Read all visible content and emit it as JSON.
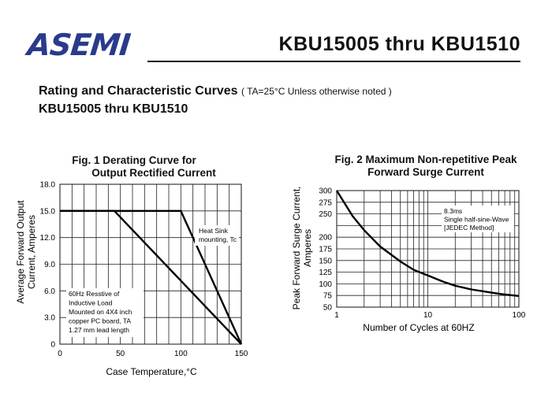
{
  "header": {
    "logo_text": "ASEMI",
    "title": "KBU15005 thru KBU1510",
    "brand_color": "#2a3a8c"
  },
  "section": {
    "title": "Rating and  Characteristic Curves",
    "condition": "( TA=25°C Unless otherwise noted )",
    "subtitle": "KBU15005 thru  KBU1510"
  },
  "chart_data": [
    {
      "type": "line",
      "title_line1": "Fig. 1 Derating Curve for",
      "title_line2": "Output Rectified Current",
      "xlabel": "Case Temperature,°C",
      "ylabel_line1": "Average Forward Output",
      "ylabel_line2": "Current, Amperes",
      "xlim": [
        0,
        150
      ],
      "ylim": [
        0,
        18
      ],
      "x_ticks": [
        "0",
        "50",
        "100",
        "150"
      ],
      "y_ticks": [
        "0",
        "3.0",
        "6.0",
        "9.0",
        "12.0",
        "15.0",
        "18.0"
      ],
      "grid": true,
      "series": [
        {
          "name": "Heat Sink mounting, Tc",
          "x": [
            0,
            100,
            150
          ],
          "y": [
            15,
            15,
            0
          ]
        },
        {
          "name": "60Hz Resistive of Inductive Load Mounted on 4X4 inch copper PC board, TA 1.27 mm lead length",
          "x": [
            0,
            45,
            150
          ],
          "y": [
            15,
            15,
            0
          ]
        }
      ],
      "annotations": [
        [
          "Heat Sink",
          "mounting, Tc"
        ],
        [
          "60Hz Resstive of",
          "Inductive Load",
          "Mounted on 4X4 inch",
          "copper PC board, TA",
          "1.27 mm lead length"
        ]
      ]
    },
    {
      "type": "line",
      "title_line1": "Fig. 2 Maximum Non-repetitive Peak",
      "title_line2": "Forward Surge Current",
      "xlabel": "Number of Cycles at 60HZ",
      "ylabel_line1": "Peak Forward Surge Current,",
      "ylabel_line2": "Amperes",
      "xscale": "log",
      "xlim": [
        1,
        100
      ],
      "ylim": [
        50,
        300
      ],
      "x_ticks": [
        "1",
        "10",
        "100"
      ],
      "y_ticks": [
        "50",
        "75",
        "100",
        "125",
        "150",
        "175",
        "200",
        "250",
        "275",
        "300"
      ],
      "grid": true,
      "series": [
        {
          "name": "",
          "x": [
            1,
            1.5,
            2,
            3,
            5,
            7,
            10,
            15,
            20,
            30,
            50,
            70,
            100
          ],
          "y": [
            300,
            245,
            215,
            180,
            148,
            130,
            118,
            104,
            96,
            88,
            81,
            77,
            74
          ]
        }
      ],
      "annotations": [
        [
          "8.3ms",
          "Single half-sine-Wave",
          "[JEDEC Method]"
        ]
      ]
    }
  ]
}
